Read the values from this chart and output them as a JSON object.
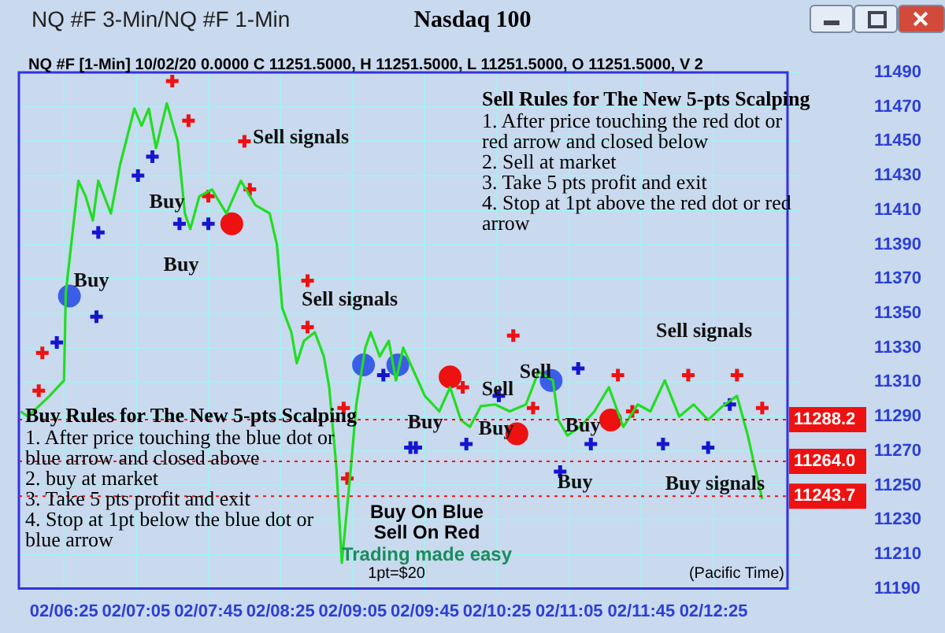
{
  "chart_data": {
    "type": "line",
    "title": "Nasdaq 100",
    "subtitle": "NQ #F [1-Min] 10/02/20  0.0000 C 11251.5000, H 11251.5000, L 11251.5000, O 11251.5000, V 2",
    "xlim": [
      "--10-02T06:00",
      "--10-02T13:06"
    ],
    "xticks": [
      {
        "value": "--10-02T06:25",
        "label": "02/06:25"
      },
      {
        "value": "--10-02T07:05",
        "label": "02/07:05"
      },
      {
        "value": "--10-02T07:45",
        "label": "02/07:45"
      },
      {
        "value": "--10-02T08:25",
        "label": "02/08:25"
      },
      {
        "value": "--10-02T09:05",
        "label": "02/09:05"
      },
      {
        "value": "--10-02T09:45",
        "label": "02/09:45"
      },
      {
        "value": "--10-02T10:25",
        "label": "02/10:25"
      },
      {
        "value": "--10-02T11:05",
        "label": "02/11:05"
      },
      {
        "value": "--10-02T11:45",
        "label": "02/11:45"
      },
      {
        "value": "--10-02T12:25",
        "label": "02/12:25"
      }
    ],
    "ylim": [
      11190,
      11490
    ],
    "yticks": [
      11190,
      11210,
      11230,
      11250,
      11270,
      11290,
      11310,
      11330,
      11350,
      11370,
      11390,
      11410,
      11430,
      11450,
      11470,
      11490
    ],
    "grid": true,
    "legend": false,
    "series": [
      {
        "type": "line",
        "color": "#22dd22",
        "marker": "none",
        "x": [
          "--10-02T06:01",
          "--10-02T06:05",
          "--10-02T06:17",
          "--10-02T06:25",
          "--10-02T06:26",
          "--10-02T06:29",
          "--10-02T06:33",
          "--10-02T06:37",
          "--10-02T06:41",
          "--10-02T06:44",
          "--10-02T06:51",
          "--10-02T06:56",
          "--10-02T07:04",
          "--10-02T07:08",
          "--10-02T07:12",
          "--10-02T07:16",
          "--10-02T07:22",
          "--10-02T07:28",
          "--10-02T07:32",
          "--10-02T07:35",
          "--10-02T07:40",
          "--10-02T07:47",
          "--10-02T07:55",
          "--10-02T08:03",
          "--10-02T08:11",
          "--10-02T08:19",
          "--10-02T08:23",
          "--10-02T08:26",
          "--10-02T08:31",
          "--10-02T08:34",
          "--10-02T08:38",
          "--10-02T08:44",
          "--10-02T08:49",
          "--10-02T08:52",
          "--10-02T08:56",
          "--10-02T08:59",
          "--10-02T09:04",
          "--10-02T09:07",
          "--10-02T09:12",
          "--10-02T09:15",
          "--10-02T09:20",
          "--10-02T09:25",
          "--10-02T09:29",
          "--10-02T09:33",
          "--10-02T09:39",
          "--10-02T09:45",
          "--10-02T09:53",
          "--10-02T09:59",
          "--10-02T10:05",
          "--10-02T10:10",
          "--10-02T10:16",
          "--10-02T10:24",
          "--10-02T10:32",
          "--10-02T10:41",
          "--10-02T10:48",
          "--10-02T10:56",
          "--10-02T10:59",
          "--10-02T11:04",
          "--10-02T11:11",
          "--10-02T11:19",
          "--10-02T11:27",
          "--10-02T11:35",
          "--10-02T11:43",
          "--10-02T11:50",
          "--10-02T11:58",
          "--10-02T12:06",
          "--10-02T12:14",
          "--10-02T12:22",
          "--10-02T12:30",
          "--10-02T12:38",
          "--10-02T12:44",
          "--10-02T12:48",
          "--10-02T12:52"
        ],
        "values": [
          11293,
          11290,
          11302,
          11311,
          11362,
          11390,
          11427,
          11418,
          11404,
          11427,
          11408,
          11436,
          11469,
          11459,
          11469,
          11446,
          11472,
          11450,
          11408,
          11399,
          11418,
          11422,
          11408,
          11427,
          11413,
          11408,
          11390,
          11353,
          11339,
          11321,
          11334,
          11339,
          11325,
          11307,
          11260,
          11205,
          11260,
          11297,
          11330,
          11339,
          11325,
          11334,
          11311,
          11330,
          11316,
          11302,
          11293,
          11307,
          11288,
          11284,
          11296,
          11297,
          11293,
          11297,
          11316,
          11311,
          11288,
          11279,
          11284,
          11293,
          11307,
          11284,
          11297,
          11293,
          11311,
          11290,
          11297,
          11288,
          11296,
          11302,
          11279,
          11260,
          11242
        ]
      },
      {
        "type": "scatter",
        "color": "#3a5ee8",
        "marker": "circle",
        "x": [
          "--10-02T06:28",
          "--10-02T09:11",
          "--10-02T09:30",
          "--10-02T10:55"
        ],
        "values": [
          11360,
          11320,
          11320,
          11311
        ]
      },
      {
        "type": "scatter",
        "color": "#ee1111",
        "marker": "circle",
        "x": [
          "--10-02T07:58",
          "--10-02T09:59",
          "--10-02T10:36",
          "--10-02T11:28"
        ],
        "values": [
          11402,
          11313,
          11280,
          11288
        ]
      },
      {
        "type": "scatter",
        "color": "#1515d0",
        "marker": "cross",
        "x": [
          "--10-02T06:21",
          "--10-02T06:43",
          "--10-02T06:44",
          "--10-02T07:06",
          "--10-02T07:14",
          "--10-02T07:29",
          "--10-02T07:45",
          "--10-02T09:22",
          "--10-02T09:37",
          "--10-02T09:40",
          "--10-02T10:08",
          "--10-02T10:26",
          "--10-02T11:00",
          "--10-02T11:10",
          "--10-02T11:17",
          "--10-02T11:57",
          "--10-02T12:22",
          "--10-02T12:34"
        ],
        "values": [
          11333,
          11348,
          11397,
          11430,
          11441,
          11402,
          11402,
          11314,
          11272,
          11272,
          11274,
          11302,
          11258,
          11318,
          11274,
          11274,
          11272,
          11297
        ]
      },
      {
        "type": "scatter",
        "color": "#ee1111",
        "marker": "cross",
        "x": [
          "--10-02T06:11",
          "--10-02T06:13",
          "--10-02T07:25",
          "--10-02T07:34",
          "--10-02T07:45",
          "--10-02T08:05",
          "--10-02T08:08",
          "--10-02T08:40",
          "--10-02T08:40",
          "--10-02T09:00",
          "--10-02T09:02",
          "--10-02T10:06",
          "--10-02T10:34",
          "--10-02T10:45",
          "--10-02T11:32",
          "--10-02T11:40",
          "--10-02T12:11",
          "--10-02T12:38",
          "--10-02T12:52"
        ],
        "values": [
          11305,
          11327,
          11485,
          11462,
          11418,
          11450,
          11422,
          11369,
          11342,
          11295,
          11254,
          11307,
          11337,
          11295,
          11314,
          11293,
          11314,
          11314,
          11295
        ]
      }
    ],
    "ref_lines": [
      {
        "axis": "y",
        "value": 11288.2,
        "label": "11288.2",
        "color": "#ee1111",
        "line_style": "dotted"
      },
      {
        "axis": "y",
        "value": 11264.0,
        "label": "11264.0",
        "color": "#ee1111",
        "line_style": "dotted"
      },
      {
        "axis": "y",
        "value": 11243.7,
        "label": "11243.7",
        "color": "#ee1111",
        "line_style": "dotted"
      }
    ],
    "annotations": [
      "NQ #F 3-Min/NQ #F 1-Min",
      "Sell Rules for The New 5-pts Scalping",
      "1. After price touching the red dot or red arrow and closed below",
      "2. Sell at market",
      "3. Take 5 pts profit and exit",
      "4. Stop at 1pt above the red dot or red arrow",
      "Buy Rules for The New 5-pts Scalping",
      "1. After price touching the blue dot or blue arrow and closed above",
      "2. buy at market",
      "3. Take 5 pts profit and exit",
      "4. Stop at 1pt below the blue dot or blue arrow",
      "Buy On Blue",
      "Sell On Red",
      "Trading made easy",
      "1pt=$20",
      "(Pacific Time)",
      "Sell signals",
      "Buy",
      "Buy",
      "Buy",
      "Sell signals",
      "Sell signals",
      "Sell",
      "Sell",
      "Buy",
      "Buy",
      "Buy",
      "Buy",
      "Buy signals"
    ]
  }
}
